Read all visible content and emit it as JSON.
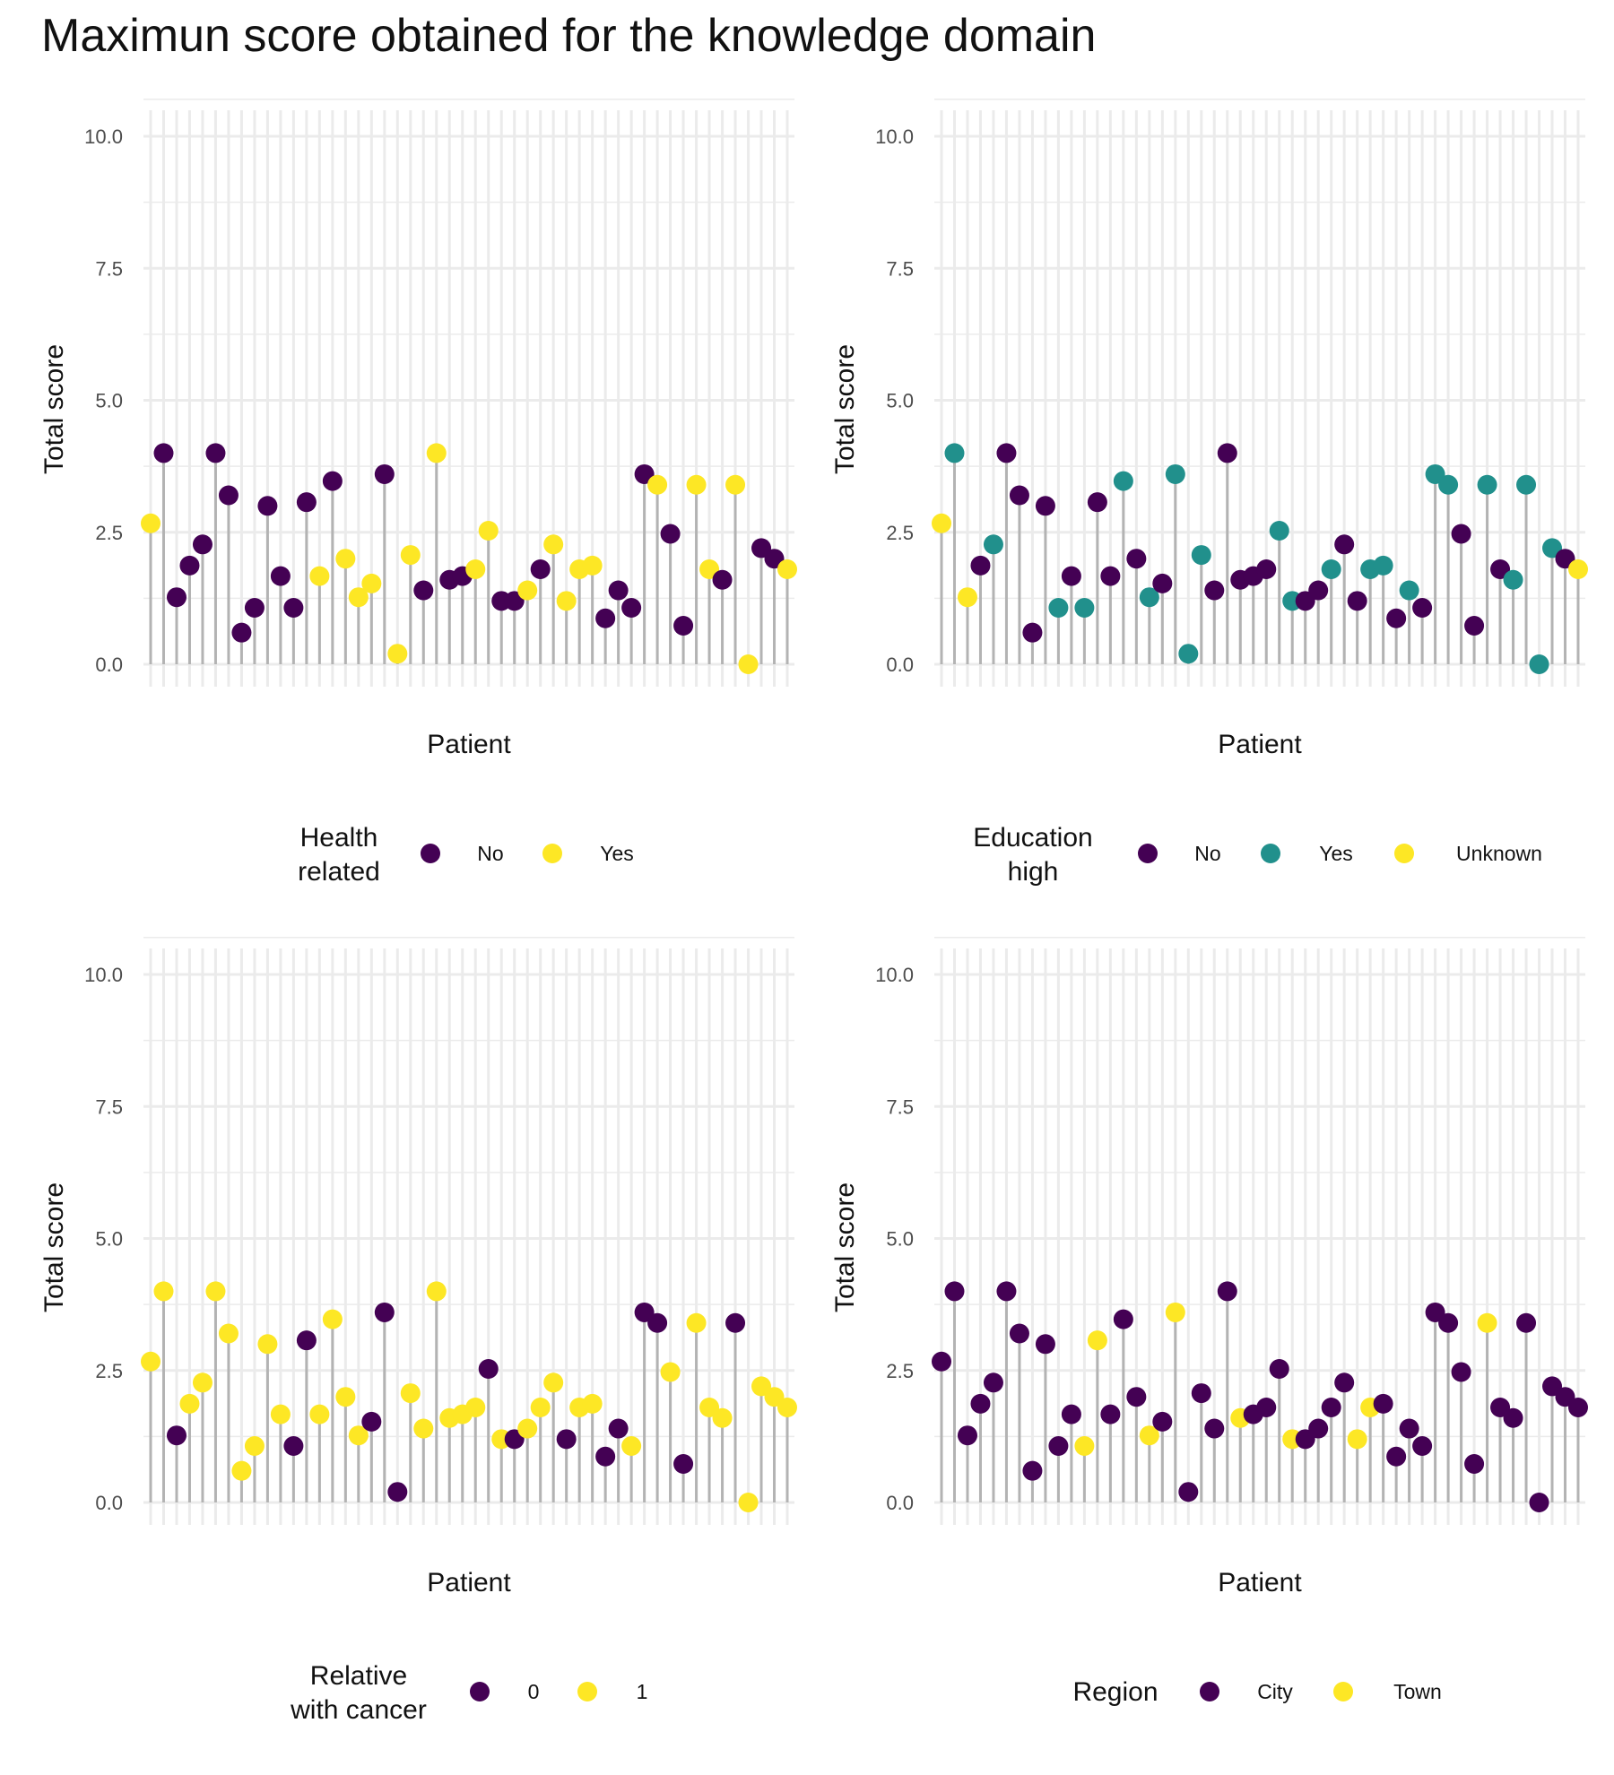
{
  "page": {
    "title": "Maximun score obtained for the knowledge domain"
  },
  "chart_data": [
    {
      "type": "scatter",
      "title": "",
      "xlabel": "Patient",
      "ylabel": "Total score",
      "ylim": [
        0,
        10
      ],
      "yticks": [
        "0.0",
        "2.5",
        "5.0",
        "7.5",
        "10.0"
      ],
      "grid": true,
      "legend": {
        "title_lines": [
          "Health",
          "related"
        ],
        "position": "bottom",
        "entries": [
          {
            "label": "No",
            "color": "#440154"
          },
          {
            "label": "Yes",
            "color": "#FDE725"
          }
        ]
      },
      "values": [
        2.67,
        4.0,
        1.27,
        1.87,
        2.27,
        4.0,
        3.2,
        0.6,
        1.07,
        3.0,
        1.67,
        1.07,
        3.07,
        1.67,
        3.47,
        2.0,
        1.27,
        1.53,
        3.6,
        0.2,
        2.07,
        1.4,
        4.0,
        1.6,
        1.67,
        1.8,
        2.53,
        1.2,
        1.2,
        1.4,
        1.8,
        2.27,
        1.2,
        1.8,
        1.87,
        0.87,
        1.4,
        1.07,
        3.6,
        3.4,
        2.47,
        0.73,
        3.4,
        1.8,
        1.6,
        3.4,
        0.0,
        2.2,
        2.0,
        1.8
      ],
      "groups": [
        1,
        0,
        0,
        0,
        0,
        0,
        0,
        0,
        0,
        0,
        0,
        0,
        0,
        1,
        0,
        1,
        1,
        1,
        0,
        1,
        1,
        0,
        1,
        0,
        0,
        1,
        1,
        0,
        0,
        1,
        0,
        1,
        1,
        1,
        1,
        0,
        0,
        0,
        0,
        1,
        0,
        0,
        1,
        1,
        0,
        1,
        1,
        0,
        0,
        1
      ]
    },
    {
      "type": "scatter",
      "title": "",
      "xlabel": "Patient",
      "ylabel": "Total score",
      "ylim": [
        0,
        10
      ],
      "yticks": [
        "0.0",
        "2.5",
        "5.0",
        "7.5",
        "10.0"
      ],
      "grid": true,
      "legend": {
        "title_lines": [
          "Education",
          "high"
        ],
        "position": "bottom",
        "entries": [
          {
            "label": "No",
            "color": "#440154"
          },
          {
            "label": "Yes",
            "color": "#21908C"
          },
          {
            "label": "Unknown",
            "color": "#FDE725"
          }
        ]
      },
      "values": [
        2.67,
        4.0,
        1.27,
        1.87,
        2.27,
        4.0,
        3.2,
        0.6,
        3.0,
        1.07,
        1.67,
        1.07,
        3.07,
        1.67,
        3.47,
        2.0,
        1.27,
        1.53,
        3.6,
        0.2,
        2.07,
        1.4,
        4.0,
        1.6,
        1.67,
        1.8,
        2.53,
        1.2,
        1.2,
        1.4,
        1.8,
        2.27,
        1.2,
        1.8,
        1.87,
        0.87,
        1.4,
        1.07,
        3.6,
        3.4,
        2.47,
        0.73,
        3.4,
        1.8,
        1.6,
        3.4,
        0.0,
        2.2,
        2.0,
        1.8
      ],
      "groups": [
        2,
        1,
        2,
        0,
        1,
        0,
        0,
        0,
        0,
        1,
        0,
        1,
        0,
        0,
        1,
        0,
        1,
        0,
        1,
        1,
        1,
        0,
        0,
        0,
        0,
        0,
        1,
        1,
        0,
        0,
        1,
        0,
        0,
        1,
        1,
        0,
        1,
        0,
        1,
        1,
        0,
        0,
        1,
        0,
        1,
        1,
        1,
        1,
        0,
        2
      ]
    },
    {
      "type": "scatter",
      "title": "",
      "xlabel": "Patient",
      "ylabel": "Total score",
      "ylim": [
        0,
        10
      ],
      "yticks": [
        "0.0",
        "2.5",
        "5.0",
        "7.5",
        "10.0"
      ],
      "grid": true,
      "legend": {
        "title_lines": [
          "Relative",
          "with cancer"
        ],
        "position": "bottom",
        "entries": [
          {
            "label": "0",
            "color": "#440154"
          },
          {
            "label": "1",
            "color": "#FDE725"
          }
        ]
      },
      "values": [
        2.67,
        4.0,
        1.27,
        1.87,
        2.27,
        4.0,
        3.2,
        0.6,
        1.07,
        3.0,
        1.67,
        1.07,
        3.07,
        1.67,
        3.47,
        2.0,
        1.27,
        1.53,
        3.6,
        0.2,
        2.07,
        1.4,
        4.0,
        1.6,
        1.67,
        1.8,
        2.53,
        1.2,
        1.2,
        1.4,
        1.8,
        2.27,
        1.2,
        1.8,
        1.87,
        0.87,
        1.4,
        1.07,
        3.6,
        3.4,
        2.47,
        0.73,
        3.4,
        1.8,
        1.6,
        3.4,
        0.0,
        2.2,
        2.0,
        1.8
      ],
      "groups": [
        1,
        1,
        0,
        1,
        1,
        1,
        1,
        1,
        1,
        1,
        1,
        0,
        0,
        1,
        1,
        1,
        1,
        0,
        0,
        0,
        1,
        1,
        1,
        1,
        1,
        1,
        0,
        1,
        0,
        1,
        1,
        1,
        0,
        1,
        1,
        0,
        0,
        1,
        0,
        0,
        1,
        0,
        1,
        1,
        1,
        0,
        1,
        1,
        1,
        1
      ]
    },
    {
      "type": "scatter",
      "title": "",
      "xlabel": "Patient",
      "ylabel": "Total score",
      "ylim": [
        0,
        10
      ],
      "yticks": [
        "0.0",
        "2.5",
        "5.0",
        "7.5",
        "10.0"
      ],
      "grid": true,
      "legend": {
        "title_lines": [
          "Region"
        ],
        "position": "bottom",
        "entries": [
          {
            "label": "City",
            "color": "#440154"
          },
          {
            "label": "Town",
            "color": "#FDE725"
          }
        ]
      },
      "values": [
        2.67,
        4.0,
        1.27,
        1.87,
        2.27,
        4.0,
        3.2,
        0.6,
        3.0,
        1.07,
        1.67,
        1.07,
        3.07,
        1.67,
        3.47,
        2.0,
        1.27,
        1.53,
        3.6,
        0.2,
        2.07,
        1.4,
        4.0,
        1.6,
        1.67,
        1.8,
        2.53,
        1.2,
        1.2,
        1.4,
        1.8,
        2.27,
        1.2,
        1.8,
        1.87,
        0.87,
        1.4,
        1.07,
        3.6,
        3.4,
        2.47,
        0.73,
        3.4,
        1.8,
        1.6,
        3.4,
        0.0,
        2.2,
        2.0,
        1.8
      ],
      "groups": [
        0,
        0,
        0,
        0,
        0,
        0,
        0,
        0,
        0,
        0,
        0,
        1,
        1,
        0,
        0,
        0,
        1,
        0,
        1,
        0,
        0,
        0,
        0,
        1,
        0,
        0,
        0,
        1,
        0,
        0,
        0,
        0,
        1,
        1,
        0,
        0,
        0,
        0,
        0,
        0,
        0,
        0,
        1,
        0,
        0,
        0,
        0,
        0,
        0,
        0
      ]
    }
  ]
}
